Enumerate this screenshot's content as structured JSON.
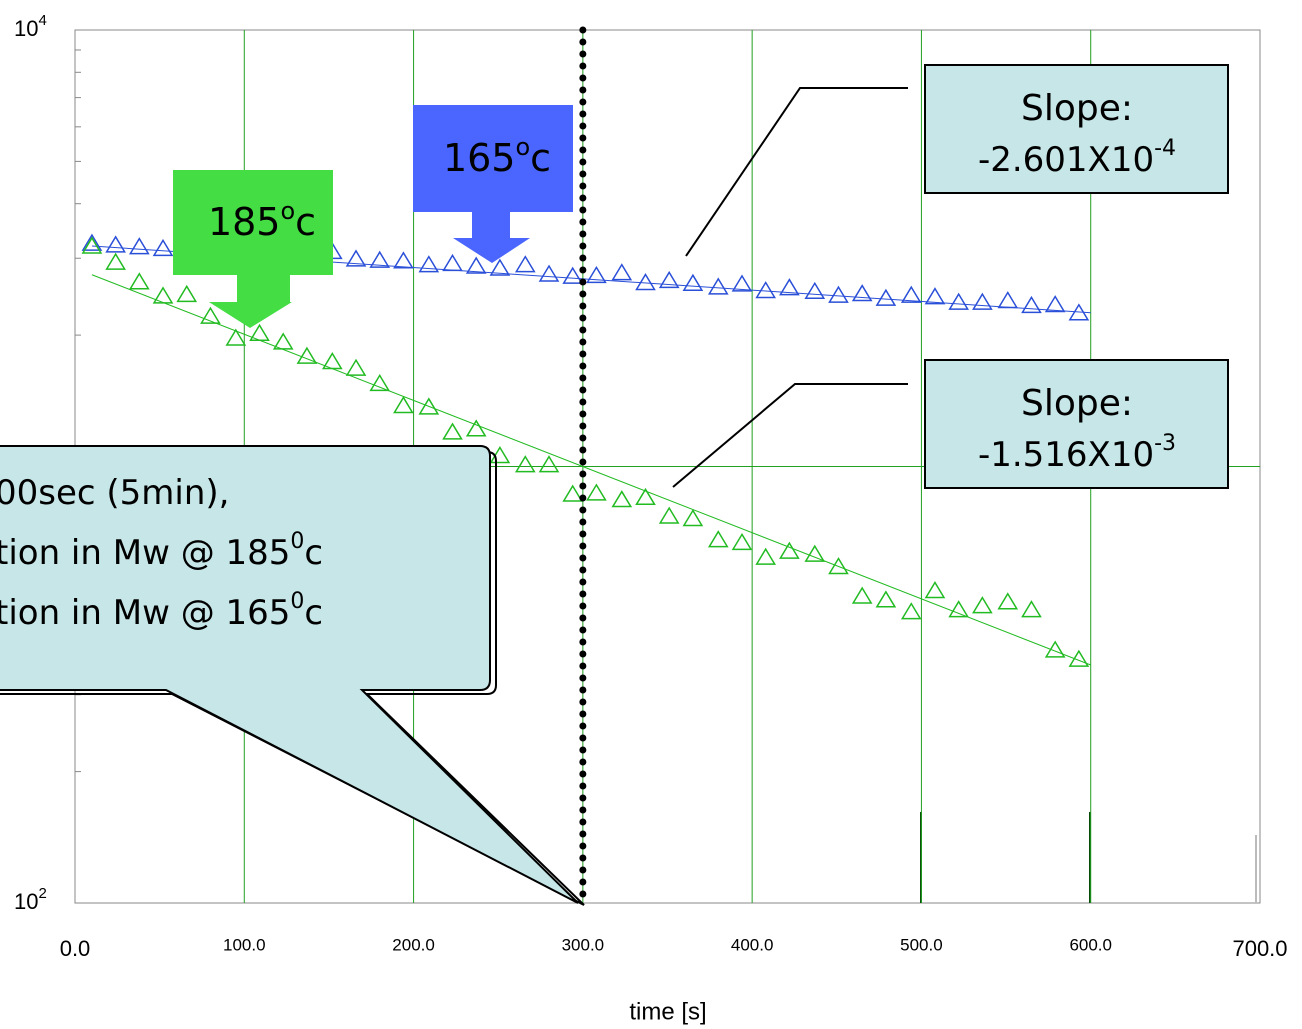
{
  "chart_data": {
    "type": "scatter",
    "x_label": "time [s]",
    "xlim": [
      0,
      700
    ],
    "xticks": [
      {
        "value": 0,
        "label": "0.0"
      },
      {
        "value": 100,
        "label": "100.0"
      },
      {
        "value": 200,
        "label": "200.0"
      },
      {
        "value": 300,
        "label": "300.0"
      },
      {
        "value": 400,
        "label": "400.0"
      },
      {
        "value": 500,
        "label": "500.0"
      },
      {
        "value": 600,
        "label": "600.0"
      },
      {
        "value": 700,
        "label": "700.0"
      }
    ],
    "ylim": [
      100,
      10000
    ],
    "y_log": true,
    "yticks": [
      {
        "value": 100,
        "label": "10",
        "sup": "2"
      },
      {
        "value": 10000,
        "label": "10",
        "sup": "4"
      }
    ],
    "ygrid": [
      1000
    ],
    "grid": true,
    "x": [
      10,
      24,
      38,
      52,
      66,
      80,
      95,
      109,
      123,
      137,
      152,
      166,
      180,
      194,
      209,
      223,
      237,
      251,
      266,
      280,
      294,
      308,
      323,
      337,
      351,
      365,
      380,
      394,
      408,
      422,
      437,
      451,
      465,
      479,
      494,
      508,
      522,
      536,
      551,
      565,
      579,
      593
    ],
    "series": [
      {
        "color": "#2a4fd8",
        "values": [
          3250,
          3220,
          3190,
          3160,
          3180,
          3150,
          3180,
          3100,
          3060,
          3040,
          3110,
          2990,
          2970,
          2960,
          2900,
          2920,
          2880,
          2850,
          2900,
          2760,
          2730,
          2740,
          2780,
          2640,
          2670,
          2630,
          2580,
          2620,
          2530,
          2570,
          2520,
          2470,
          2490,
          2430,
          2470,
          2450,
          2380,
          2380,
          2400,
          2340,
          2350,
          2250
        ]
      },
      {
        "color": "#22bb22",
        "values": [
          3200,
          2940,
          2650,
          2460,
          2480,
          2210,
          1970,
          2020,
          1930,
          1790,
          1740,
          1680,
          1550,
          1380,
          1370,
          1200,
          1220,
          1060,
          1010,
          1010,
          865,
          870,
          840,
          850,
          770,
          760,
          680,
          670,
          620,
          640,
          630,
          590,
          505,
          495,
          465,
          520,
          470,
          480,
          490,
          470,
          380,
          362
        ]
      }
    ],
    "fits": [
      {
        "color": "#2a4fd8",
        "x": [
          10,
          600
        ],
        "values": [
          3200,
          2250
        ]
      },
      {
        "color": "#22bb22",
        "x": [
          10,
          600
        ],
        "values": [
          2750,
          351
        ]
      }
    ],
    "marker_line_x": 300,
    "annotations": {
      "arrow_185": {
        "text": "185",
        "sup": "o",
        "tail": "c"
      },
      "arrow_165": {
        "text": "165",
        "sup": "o",
        "tail": "c"
      },
      "slope_blue": {
        "line1": "Slope:",
        "text": "-2.601X10",
        "sup": "-4"
      },
      "slope_green": {
        "line1": "Slope:",
        "text": "-1.516X10",
        "sup": "-3"
      },
      "callout": [
        {
          "text": "00sec (5min),"
        },
        {
          "text": "tion in Mw @ 185",
          "sup": "0",
          "tail": "c"
        },
        {
          "text": "tion in Mw @ 165",
          "sup": "0",
          "tail": "c"
        }
      ]
    }
  }
}
